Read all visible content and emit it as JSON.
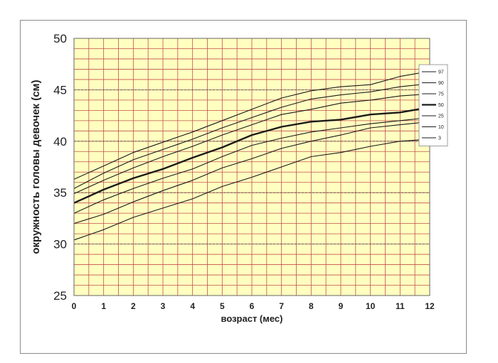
{
  "chart_data": {
    "type": "line",
    "xlabel": "возраст (мес)",
    "ylabel": "окружность головы девочек (см)",
    "xlim": [
      0,
      12
    ],
    "ylim": [
      25,
      50
    ],
    "x_ticks": [
      "0",
      "1",
      "2",
      "3",
      "4",
      "5",
      "6",
      "7",
      "8",
      "9",
      "10",
      "11",
      "12"
    ],
    "y_ticks": [
      "25",
      "30",
      "35",
      "40",
      "45",
      "50"
    ],
    "grid": true,
    "legend_position": "right",
    "x": [
      0,
      1,
      2,
      3,
      4,
      5,
      6,
      7,
      8,
      9,
      10,
      11,
      12
    ],
    "series": [
      {
        "name": "97",
        "values": [
          36.3,
          37.6,
          38.9,
          39.9,
          40.9,
          42.0,
          43.1,
          44.2,
          44.9,
          45.3,
          45.5,
          46.3,
          46.8
        ],
        "bold": false
      },
      {
        "name": "90",
        "values": [
          35.4,
          36.9,
          38.2,
          39.2,
          40.2,
          41.3,
          42.3,
          43.3,
          44.1,
          44.5,
          44.8,
          45.3,
          45.6
        ],
        "bold": false
      },
      {
        "name": "75",
        "values": [
          34.9,
          36.2,
          37.4,
          38.5,
          39.5,
          40.6,
          41.6,
          42.6,
          43.1,
          43.7,
          44.0,
          44.4,
          44.6
        ],
        "bold": false
      },
      {
        "name": "50",
        "values": [
          34.0,
          35.3,
          36.4,
          37.3,
          38.4,
          39.4,
          40.6,
          41.4,
          41.9,
          42.1,
          42.6,
          42.8,
          43.3
        ],
        "bold": true
      },
      {
        "name": "25",
        "values": [
          33.0,
          34.3,
          35.4,
          36.4,
          37.3,
          38.5,
          39.6,
          40.3,
          40.9,
          41.3,
          41.7,
          42.0,
          42.3
        ],
        "bold": false
      },
      {
        "name": "10",
        "values": [
          32.0,
          32.9,
          34.1,
          35.2,
          36.2,
          37.4,
          38.3,
          39.3,
          40.0,
          40.6,
          41.3,
          41.6,
          41.9
        ],
        "bold": false
      },
      {
        "name": "3",
        "values": [
          30.4,
          31.4,
          32.6,
          33.5,
          34.4,
          35.6,
          36.5,
          37.5,
          38.5,
          38.9,
          39.5,
          40.0,
          40.2
        ],
        "bold": false
      }
    ]
  },
  "colors": {
    "plot_bg": "#ffffc0",
    "grid": "#c0504d",
    "major_grid": "#555555",
    "line": "#1a1a1a",
    "text": "#222222"
  }
}
